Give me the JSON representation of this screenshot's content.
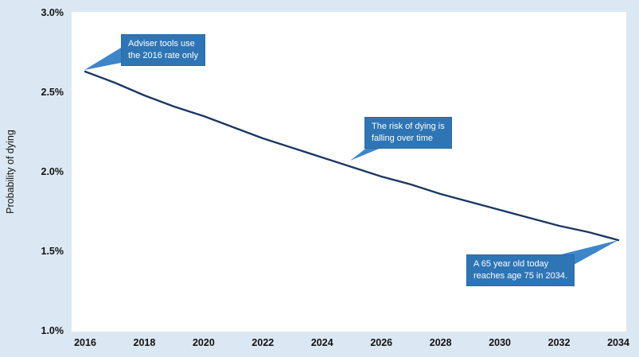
{
  "chart_data": {
    "type": "line",
    "title": "",
    "xlabel": "",
    "ylabel": "Probability of dying",
    "x": [
      2016,
      2017,
      2018,
      2019,
      2020,
      2021,
      2022,
      2023,
      2024,
      2025,
      2026,
      2027,
      2028,
      2029,
      2030,
      2031,
      2032,
      2033,
      2034
    ],
    "series": [
      {
        "name": "Probability of dying",
        "values": [
          2.63,
          2.56,
          2.48,
          2.41,
          2.35,
          2.28,
          2.21,
          2.15,
          2.09,
          2.03,
          1.97,
          1.92,
          1.86,
          1.81,
          1.76,
          1.71,
          1.66,
          1.62,
          1.57
        ]
      }
    ],
    "xlim": [
      2016,
      2034
    ],
    "ylim": [
      1.0,
      3.0
    ],
    "y_ticks": [
      {
        "label": "3.0%",
        "value": 3.0
      },
      {
        "label": "2.5%",
        "value": 2.5
      },
      {
        "label": "2.0%",
        "value": 2.0
      },
      {
        "label": "1.5%",
        "value": 1.5
      },
      {
        "label": "1.0%",
        "value": 1.0
      }
    ],
    "x_ticks": [
      {
        "label": "2016",
        "value": 2016
      },
      {
        "label": "2018",
        "value": 2018
      },
      {
        "label": "2020",
        "value": 2020
      },
      {
        "label": "2022",
        "value": 2022
      },
      {
        "label": "2024",
        "value": 2024
      },
      {
        "label": "2026",
        "value": 2026
      },
      {
        "label": "2028",
        "value": 2028
      },
      {
        "label": "2030",
        "value": 2030
      },
      {
        "label": "2032",
        "value": 2032
      },
      {
        "label": "2034",
        "value": 2034
      }
    ],
    "grid": false,
    "legend_position": "none",
    "units": "percent"
  },
  "annotations": [
    {
      "name": "adviser-tools-callout",
      "lines": [
        "Adviser tools use",
        "the 2016 rate only"
      ],
      "points_to_year": 2016
    },
    {
      "name": "risk-falling-callout",
      "lines": [
        "The risk of dying is",
        "falling over time"
      ],
      "points_to_year": 2025
    },
    {
      "name": "age-75-callout",
      "lines": [
        "A 65 year old today",
        "reaches age 75 in 2034."
      ],
      "points_to_year": 2034
    }
  ],
  "colors": {
    "background": "#dbe8f4",
    "plot_background": "#ffffff",
    "line": "#1b3763",
    "callout_fill": "#2e75b6",
    "callout_border": "#2a6aa6",
    "callout_tail": "#3e86ca",
    "callout_text": "#ffffff",
    "tick_text": "#111111"
  }
}
